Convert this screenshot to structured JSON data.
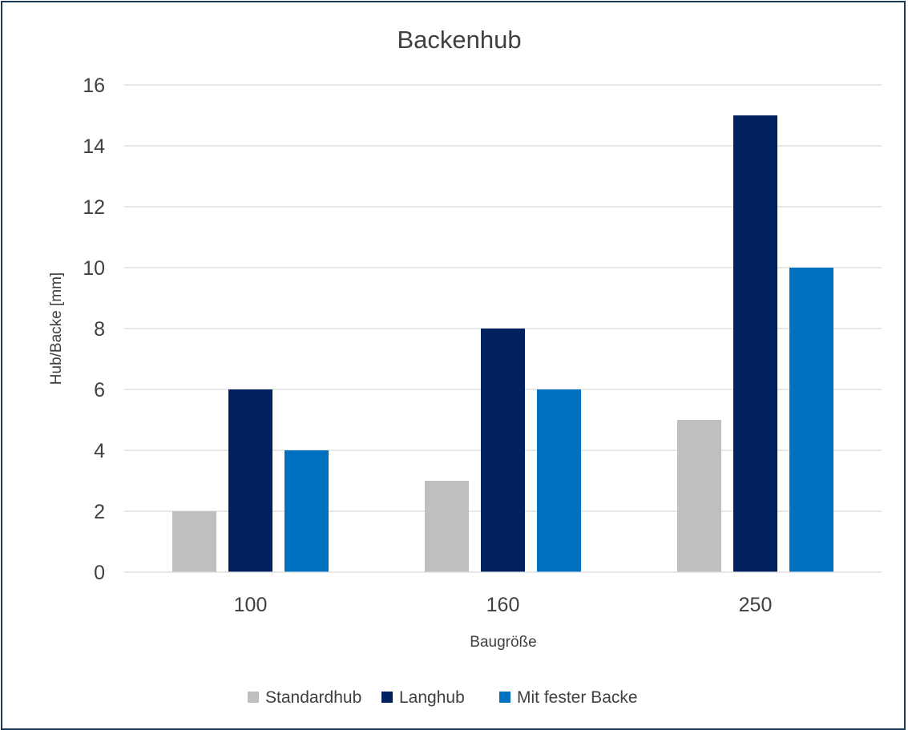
{
  "chart_data": {
    "type": "bar",
    "title": "Backenhub",
    "xlabel": "Baugröße",
    "ylabel": "Hub/Backe [mm]",
    "categories": [
      "100",
      "160",
      "250"
    ],
    "ylim": [
      0,
      16
    ],
    "yticks": [
      0,
      2,
      4,
      6,
      8,
      10,
      12,
      14,
      16
    ],
    "grid": true,
    "legend_position": "bottom",
    "series": [
      {
        "name": "Standardhub",
        "values": [
          2,
          3,
          5
        ],
        "color": "#bfbfbf"
      },
      {
        "name": "Langhub",
        "values": [
          6,
          8,
          15
        ],
        "color": "#002060"
      },
      {
        "name": "Mit fester Backe",
        "values": [
          4,
          6,
          10
        ],
        "color": "#0070c0"
      }
    ]
  }
}
